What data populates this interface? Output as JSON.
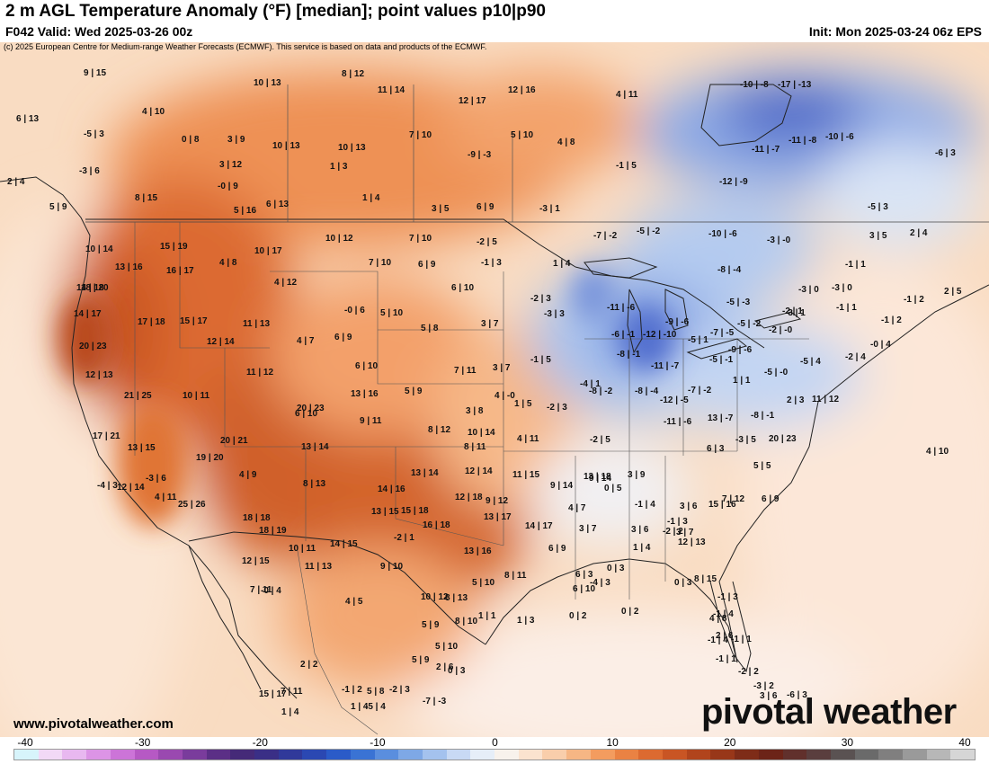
{
  "header": {
    "title": "2 m AGL Temperature Anomaly (°F) [median]; point values p10|p90",
    "valid": "F042 Valid: Wed 2025-03-26 00z",
    "init": "Init: Mon 2025-03-24 06z EPS"
  },
  "map": {
    "copyright": "(c) 2025 European Centre for Medium-range Weather Forecasts (ECMWF). This service is based on data and products of the ECMWF.",
    "points": [
      "9 | 15",
      "8 | 12",
      "10 | 13",
      "11 | 14",
      "12 | 17",
      "12 | 16",
      "4 | 11",
      "-10 | -8",
      "-17 | -13",
      "6 | 13",
      "4 | 10",
      "-5 | 3",
      "0 | 8",
      "3 | 9",
      "10 | 13",
      "10 | 13",
      "7 | 10",
      "5 | 10",
      "4 | 8",
      "-11 | -7",
      "-11 | -8",
      "-10 | -6",
      "-6 | 3",
      "-3 | 6",
      "3 | 12",
      "1 | 3",
      "-9 | -3",
      "-1 | 5",
      "-0 | 9",
      "-12 | -9",
      "8 | 15",
      "5 | 16",
      "6 | 13",
      "1 | 4",
      "3 | 5",
      "6 | 9",
      "-3 | 1",
      "-5 | 3",
      "2 | 4",
      "5 | 9",
      "10 | 14",
      "15 | 19",
      "4 | 8",
      "10 | 17",
      "10 | 12",
      "7 | 10",
      "-2 | 5",
      "-7 | -2",
      "-5 | -2",
      "-10 | -6",
      "-3 | -0",
      "3 | 5",
      "2 | 4",
      "13 | 16",
      "16 | 17",
      "7 | 10",
      "6 | 9",
      "-1 | 3",
      "1 | 4",
      "-8 | -4",
      "-1 | 1",
      "14 | 18",
      "4 | 12",
      "18 | 20",
      "6 | 10",
      "-2 | 3",
      "-3 | 0",
      "-3 | 0",
      "-1 | 2",
      "2 | 5",
      "14 | 17",
      "-0 | 6",
      "5 | 10",
      "-11 | -6",
      "-5 | -3",
      "-1 | 1",
      "-1 | 2",
      "17 | 18",
      "15 | 17",
      "11 | 13",
      "-3 | 3",
      "-9 | -6",
      "-2 | 1",
      "20 | 23",
      "12 | 14",
      "4 | 7",
      "6 | 9",
      "5 | 8",
      "3 | 7",
      "-6 | -1",
      "-12 | -10",
      "-5 | -2",
      "-2 | -0",
      "-3 | 1",
      "-7 | -5",
      "-5 | 1",
      "-0 | 4",
      "-9 | -6",
      "-8 | -1",
      "-2 | 4",
      "12 | 13",
      "11 | 12",
      "6 | 10",
      "7 | 11",
      "3 | 7",
      "-1 | 5",
      "-11 | -7",
      "-5 | -1",
      "-5 | 4",
      "-5 | -0",
      "21 | 25",
      "10 | 11",
      "13 | 16",
      "5 | 9",
      "4 | -0",
      "-4 | 1",
      "-8 | -2",
      "-8 | -4",
      "-7 | -2",
      "1 | 1",
      "2 | 3",
      "11 | 12",
      "20 | 23",
      "6 | 10",
      "3 | 8",
      "1 | 5",
      "-2 | 3",
      "-12 | -5",
      "13 | -7",
      "-8 | -1",
      "9 | 11",
      "8 | 12",
      "10 | 14",
      "-11 | -6",
      "-3 | 5",
      "17 | 21",
      "20 | 21",
      "13 | 15",
      "19 | 20",
      "13 | 14",
      "4 | 11",
      "-2 | 5",
      "6 | 3",
      "20 | 23",
      "12 | 14",
      "8 | 11",
      "5 | 5",
      "-4 | 3",
      "-3 | 6",
      "8 | 13",
      "4 | 9",
      "13 | 14",
      "12 | 14",
      "11 | 15",
      "13 | 18",
      "9 | 14",
      "3 | 9",
      "4 | 10",
      "4 | 11",
      "14 | 16",
      "9 | 14",
      "0 | 5",
      "-1 | 4",
      "3 | 6",
      "7 | 12",
      "-1 | 3",
      "25 | 26",
      "18 | 18",
      "13 | 15",
      "15 | 18",
      "12 | 18",
      "9 | 12",
      "4 | 7",
      "3 | 6",
      "-2 | 2",
      "6 | 9",
      "15 | 16",
      "18 | 19",
      "16 | 18",
      "13 | 17",
      "14 | 17",
      "3 | 7",
      "1 | 4",
      "3 | 7",
      "12 | 13",
      "10 | 11",
      "14 | 15",
      "-2 | 1",
      "12 | 15",
      "11 | 13",
      "13 | 16",
      "6 | 9",
      "0 | 3",
      "6 | 3",
      "9 | 10",
      "8 | 11",
      "8 | 15",
      "-1 | 3",
      "-0 | 4",
      "7 | 11",
      "5 | 10",
      "6 | 10",
      "-4 | 3",
      "4 | 8",
      "4 | 5",
      "8 | 13",
      "-1 | 4",
      "0 | 3",
      "10 | 12",
      "1 | 3",
      "0 | 2",
      "0 | 2",
      "-1 | 4",
      "5 | 9",
      "8 | 10",
      "1 | 1",
      "-1 | 1",
      "2 | 6",
      "5 | 10",
      "-1 | 1",
      "-2 | 2",
      "2 | 2",
      "5 | 9",
      "2 | 6",
      "0 | 3",
      "-3 | 2",
      "15 | 17",
      "5 | 8",
      "-7 | -3",
      "-2 | 3",
      "7 | 11",
      "-5 | 4",
      "3 | 6",
      "-1 | 2",
      "1 | 4",
      "-6 | 3",
      "1 | 4"
    ]
  },
  "footer": {
    "website": "www.pivotalweather.com",
    "brand": "pivotal weather"
  },
  "colorbar": {
    "ticks": [
      "-40",
      "-30",
      "-20",
      "-10",
      "0",
      "10",
      "20",
      "30",
      "40"
    ],
    "colors": [
      "#d7f4fb",
      "#f2d9f6",
      "#e8b8f0",
      "#dc94e6",
      "#cc74d8",
      "#b659c4",
      "#9a49b0",
      "#7a3c9c",
      "#5b2f86",
      "#452a78",
      "#3a2f86",
      "#30399a",
      "#2b48b2",
      "#2b5bc8",
      "#3a73d4",
      "#5a8ede",
      "#7ea8e6",
      "#a4c2ee",
      "#c8d9f4",
      "#e6eef8",
      "#f8f2ec",
      "#fbe3cf",
      "#f9ceab",
      "#f6b684",
      "#f39c5f",
      "#ea8243",
      "#dc6a30",
      "#c95524",
      "#b1441c",
      "#983719",
      "#7e2c18",
      "#6c2418",
      "#61302c",
      "#5a3e3e",
      "#5a5252",
      "#6a6a6a",
      "#807f7f",
      "#9a9a9a",
      "#b7b7b7",
      "#d6d6d6"
    ]
  }
}
